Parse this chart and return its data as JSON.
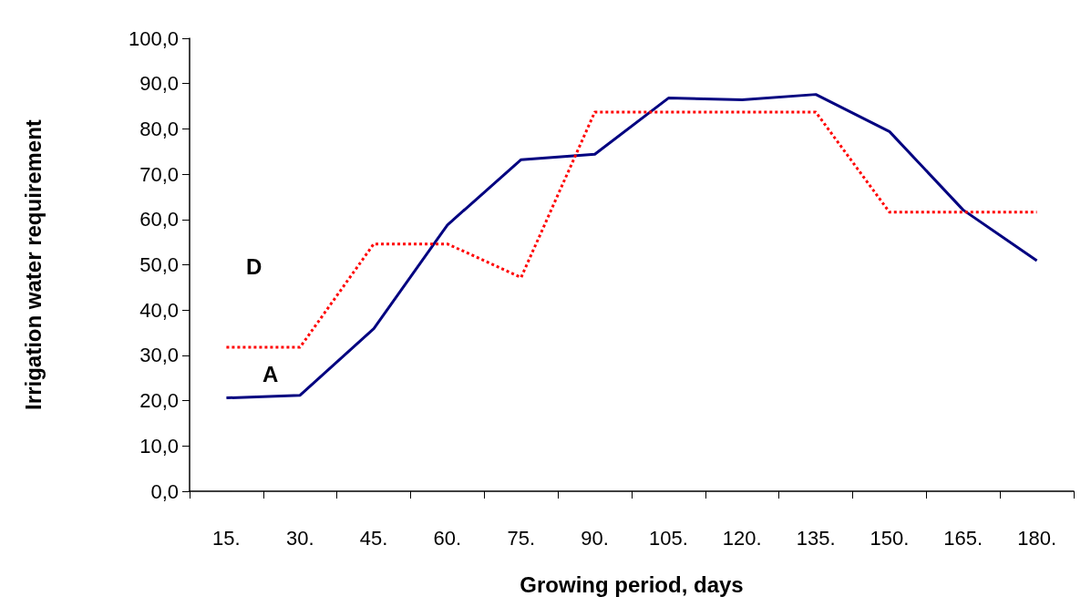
{
  "chart_data": {
    "type": "line",
    "xlabel": "Growing period, days",
    "ylabel": "Irrigation water requirement",
    "categories": [
      "15.",
      "30.",
      "45.",
      "60.",
      "75.",
      "90.",
      "105.",
      "120.",
      "135.",
      "150.",
      "165.",
      "180."
    ],
    "series": [
      {
        "color": "#000080",
        "line_style": "solid",
        "values": [
          20.6,
          21.2,
          35.9,
          58.8,
          73.2,
          74.4,
          86.8,
          86.4,
          87.6,
          79.4,
          62.1,
          50.9
        ]
      },
      {
        "color": "#ff0000",
        "line_style": "dotted",
        "values": [
          31.8,
          31.8,
          54.6,
          54.6,
          47.2,
          83.7,
          83.7,
          83.7,
          83.7,
          61.6,
          61.6,
          61.6
        ]
      }
    ],
    "ylim": [
      0,
      100
    ],
    "yticks": [
      {
        "value": 0,
        "label": "0,0"
      },
      {
        "value": 10,
        "label": "10,0"
      },
      {
        "value": 20,
        "label": "20,0"
      },
      {
        "value": 30,
        "label": "30,0"
      },
      {
        "value": 40,
        "label": "40,0"
      },
      {
        "value": 50,
        "label": "50,0"
      },
      {
        "value": 60,
        "label": "60,0"
      },
      {
        "value": 70,
        "label": "70,0"
      },
      {
        "value": 80,
        "label": "80,0"
      },
      {
        "value": 90,
        "label": "90,0"
      },
      {
        "value": 100,
        "label": "100,0"
      }
    ],
    "grid": false,
    "marker": "none",
    "annotations": [
      "D",
      "A"
    ]
  }
}
